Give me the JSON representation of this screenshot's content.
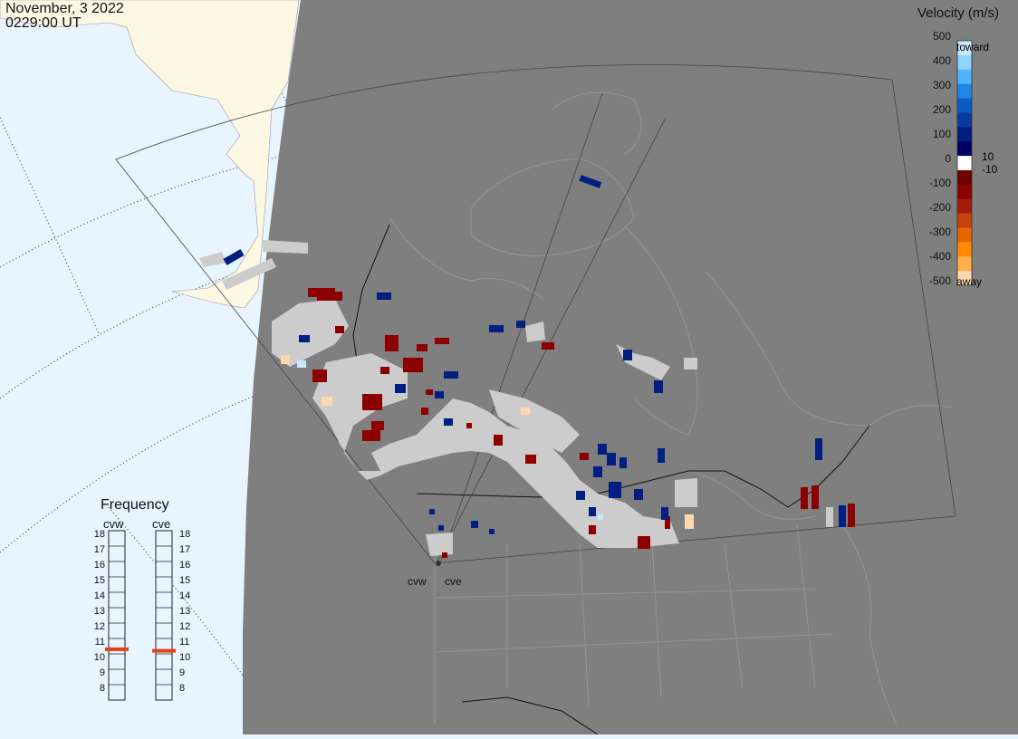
{
  "header": {
    "date": "November, 3 2022",
    "time": "0229:00 UT"
  },
  "legend": {
    "title": "Velocity (m/s)",
    "ticks": [
      "500",
      "400",
      "300",
      "200",
      "100",
      "0",
      "-100",
      "-200",
      "-300",
      "-400",
      "-500"
    ],
    "toward_label": "toward",
    "away_label": "away",
    "pos_threshold": "10",
    "neg_threshold": "-10",
    "colors": [
      "#c8eaff",
      "#8fd3ff",
      "#4fb4ff",
      "#1e88e8",
      "#0c5cc8",
      "#0a3aa0",
      "#001f80",
      "#000060",
      "#ffffff",
      "#6e0000",
      "#8c0000",
      "#a51c0a",
      "#c8400a",
      "#e86400",
      "#ff8c00",
      "#ffae4a",
      "#ffd8b0"
    ]
  },
  "frequency": {
    "title": "Frequency",
    "radars": [
      {
        "label": "cvw",
        "value": 10.8
      },
      {
        "label": "cve",
        "value": 10.7
      }
    ],
    "scale": [
      "18",
      "17",
      "16",
      "15",
      "14",
      "13",
      "12",
      "11",
      "10",
      "9",
      "8"
    ],
    "marker_color": "#e0401a"
  },
  "sites": [
    {
      "label": "cvw"
    },
    {
      "label": "cve"
    }
  ],
  "map_colors": {
    "ocean": "#e8f4ff",
    "land": "#fdf8e4",
    "night": "#7f7f7f",
    "ground_scatter": "#cccccc"
  }
}
